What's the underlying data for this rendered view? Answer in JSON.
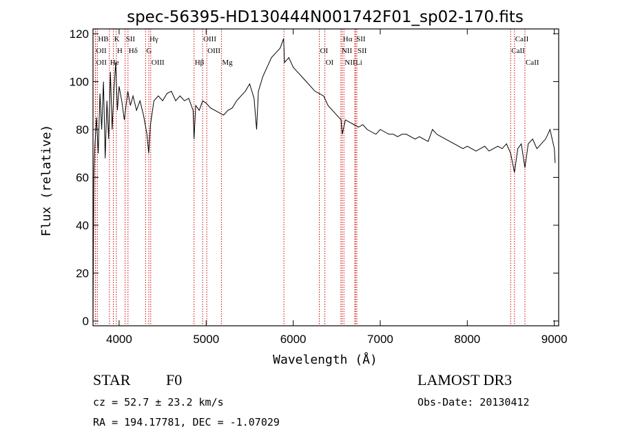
{
  "chart_data": {
    "type": "line",
    "title": "spec-56395-HD130444N001742F01_sp02-170.fits",
    "xlabel": "Wavelength (Å)",
    "ylabel": "Flux (relative)",
    "xlim": [
      3700,
      9050
    ],
    "ylim": [
      -2,
      122
    ],
    "xticks": [
      4000,
      5000,
      6000,
      7000,
      8000,
      9000
    ],
    "yticks": [
      0,
      20,
      40,
      60,
      80,
      100,
      120
    ],
    "line_color": "#000000",
    "marker_color": "#cc0000",
    "series": [
      {
        "values_x": [
          3700,
          3705,
          3710,
          3720,
          3740,
          3760,
          3780,
          3800,
          3820,
          3840,
          3860,
          3880,
          3900,
          3920,
          3940,
          3960,
          3980,
          4000,
          4030,
          4060,
          4100,
          4130,
          4160,
          4200,
          4240,
          4280,
          4320,
          4340,
          4360,
          4400,
          4450,
          4500,
          4550,
          4600,
          4650,
          4700,
          4750,
          4800,
          4850,
          4861,
          4880,
          4920,
          4960,
          5000,
          5050,
          5100,
          5150,
          5200,
          5250,
          5300,
          5350,
          5400,
          5450,
          5500,
          5550,
          5580,
          5600,
          5650,
          5700,
          5750,
          5800,
          5850,
          5890,
          5900,
          5950,
          6000,
          6050,
          6100,
          6150,
          6200,
          6250,
          6300,
          6350,
          6400,
          6450,
          6500,
          6550,
          6563,
          6600,
          6650,
          6700,
          6750,
          6800,
          6850,
          6900,
          6950,
          7000,
          7050,
          7100,
          7150,
          7200,
          7250,
          7300,
          7350,
          7400,
          7450,
          7500,
          7550,
          7600,
          7650,
          7700,
          7750,
          7800,
          7850,
          7900,
          7950,
          8000,
          8050,
          8100,
          8150,
          8200,
          8250,
          8300,
          8350,
          8400,
          8450,
          8498,
          8542,
          8580,
          8620,
          8662,
          8700,
          8750,
          8800,
          8850,
          8900,
          8950,
          9000,
          9010
        ],
        "values_y": [
          0,
          30,
          60,
          72,
          85,
          70,
          95,
          80,
          100,
          68,
          92,
          76,
          104,
          80,
          96,
          108,
          88,
          98,
          92,
          84,
          96,
          90,
          94,
          88,
          92,
          86,
          78,
          70,
          82,
          92,
          94,
          92,
          95,
          96,
          92,
          94,
          92,
          93,
          88,
          76,
          90,
          88,
          92,
          91,
          89,
          88,
          87,
          86,
          88,
          89,
          92,
          94,
          96,
          99,
          93,
          80,
          96,
          102,
          106,
          110,
          112,
          114,
          118,
          108,
          110,
          106,
          104,
          102,
          100,
          98,
          96,
          95,
          94,
          90,
          88,
          86,
          84,
          78,
          84,
          83,
          82,
          81,
          82,
          80,
          79,
          78,
          80,
          79,
          78,
          78,
          77,
          78,
          78,
          77,
          76,
          77,
          76,
          75,
          80,
          78,
          77,
          76,
          75,
          74,
          73,
          72,
          73,
          72,
          71,
          72,
          73,
          71,
          72,
          73,
          72,
          74,
          70,
          62,
          72,
          74,
          64,
          74,
          76,
          72,
          74,
          76,
          80,
          72,
          66
        ]
      }
    ],
    "lines": [
      {
        "label": "HB",
        "x": 3750
      },
      {
        "label": "OII",
        "x": 3727
      },
      {
        "label": "OII",
        "x": 3729
      },
      {
        "label": "K",
        "x": 3934
      },
      {
        "label": "H",
        "x": 3968
      },
      {
        "label": "He",
        "x": 3889
      },
      {
        "label": "SII",
        "x": 4069
      },
      {
        "label": "Hδ",
        "x": 4102
      },
      {
        "label": "OIII",
        "x": 4363
      },
      {
        "label": "Hγ",
        "x": 4341
      },
      {
        "label": "G",
        "x": 4304
      },
      {
        "label": "Hβ",
        "x": 4861
      },
      {
        "label": "OIII",
        "x": 4959
      },
      {
        "label": "OIII",
        "x": 5007
      },
      {
        "label": "Mg",
        "x": 5175
      },
      {
        "label": "",
        "x": 5893
      },
      {
        "label": "OI",
        "x": 6300
      },
      {
        "label": "OI",
        "x": 6364
      },
      {
        "label": "Hα",
        "x": 6563
      },
      {
        "label": "NII",
        "x": 6548
      },
      {
        "label": "NII",
        "x": 6583
      },
      {
        "label": "SII",
        "x": 6716
      },
      {
        "label": "SII",
        "x": 6731
      },
      {
        "label": "Li",
        "x": 6708
      },
      {
        "label": "CaII",
        "x": 8542
      },
      {
        "label": "CaII",
        "x": 8498
      },
      {
        "label": "CaII",
        "x": 8662
      }
    ]
  },
  "info": {
    "class": "STAR",
    "subclass": "F0",
    "survey": "LAMOST DR3",
    "cz": "cz = 52.7 ± 23.2 km/s",
    "obs_date": "Obs-Date: 20130412",
    "coords": "RA = 194.17781, DEC =  -1.07029"
  }
}
